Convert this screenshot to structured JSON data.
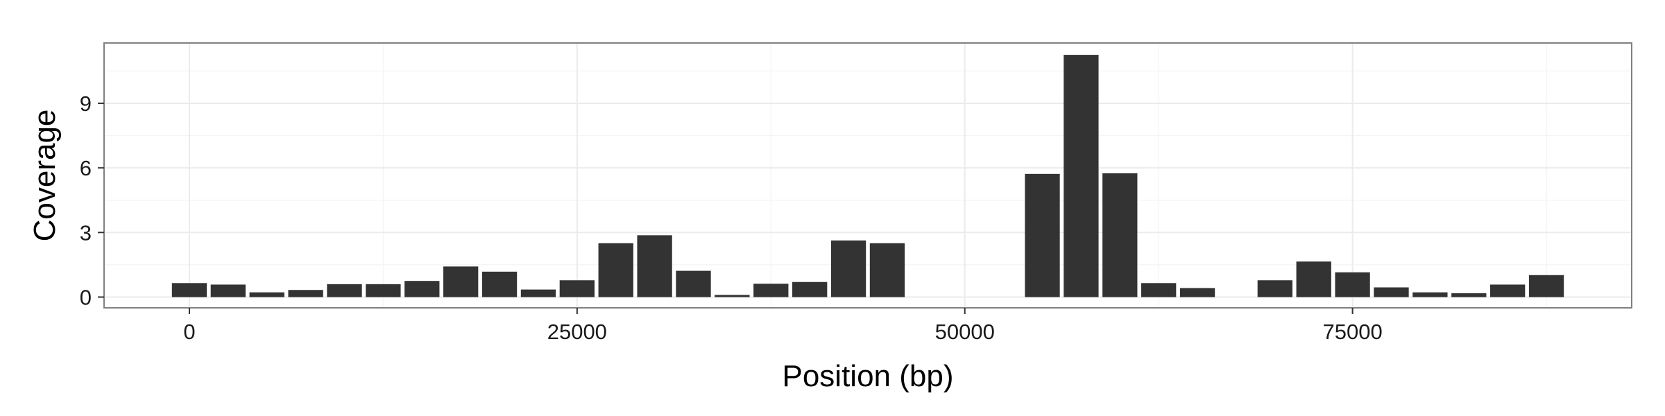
{
  "chart_data": {
    "type": "bar",
    "title": "",
    "xlabel": "Position (bp)",
    "ylabel": "Coverage",
    "xlim": [
      -5500,
      93000
    ],
    "ylim": [
      -0.5,
      11.8
    ],
    "x_ticks": [
      0,
      25000,
      50000,
      75000
    ],
    "y_ticks": [
      0,
      3,
      6,
      9
    ],
    "bar_width": 2250,
    "grid": true,
    "legend": "none",
    "colors": {
      "bar": "#333333",
      "panel_border": "#808080",
      "grid_major": "#ebebeb",
      "grid_minor": "#f5f5f5",
      "tick": "#333333"
    },
    "x": [
      0,
      2500,
      5000,
      7500,
      10000,
      12500,
      15000,
      17500,
      20000,
      22500,
      25000,
      27500,
      30000,
      32500,
      35000,
      37500,
      40000,
      42500,
      45000,
      47500,
      50000,
      52500,
      55000,
      57500,
      60000,
      62500,
      65000,
      67500,
      70000,
      72500,
      75000,
      77500,
      80000,
      82500,
      85000,
      87500
    ],
    "values": [
      0.65,
      0.58,
      0.22,
      0.33,
      0.6,
      0.6,
      0.75,
      1.42,
      1.18,
      0.35,
      0.78,
      2.5,
      2.87,
      1.22,
      0.1,
      0.62,
      0.7,
      2.63,
      2.5,
      0,
      0,
      0,
      5.72,
      11.25,
      5.75,
      0.65,
      0.42,
      0,
      0.78,
      1.65,
      1.15,
      0.45,
      0.22,
      0.18,
      0.58,
      1.02
    ]
  }
}
